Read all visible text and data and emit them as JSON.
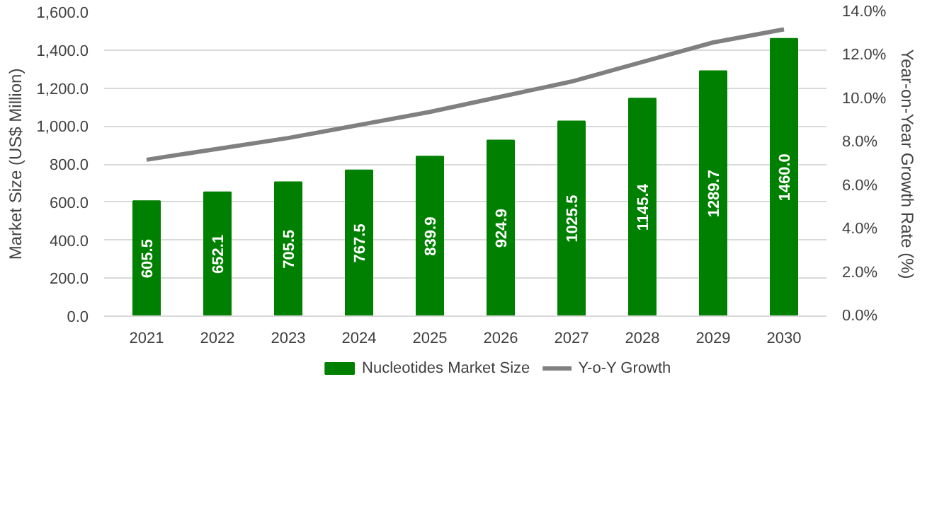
{
  "chart_data": {
    "type": "bar",
    "ylabel": "Market Size (US$ Million)",
    "y2label": "Year-on-Year Growth Rate (%)",
    "categories": [
      "2021",
      "2022",
      "2023",
      "2024",
      "2025",
      "2026",
      "2027",
      "2028",
      "2029",
      "2030"
    ],
    "series": [
      {
        "name": "Nucleotides Market Size",
        "color": "#008000",
        "values": [
          605.5,
          652.1,
          705.5,
          767.5,
          839.9,
          924.9,
          1025.5,
          1145.4,
          1289.7,
          1460.0
        ],
        "value_labels": [
          "605.5",
          "652.1",
          "705.5",
          "767.5",
          "839.9",
          "924.9",
          "1025.5",
          "1145.4",
          "1289.7",
          "1460.0"
        ]
      },
      {
        "name": "Y-o-Y Growth",
        "type": "line",
        "axis": "y2",
        "color": "#808080",
        "values": [
          7.2,
          7.7,
          8.2,
          8.8,
          9.4,
          10.1,
          10.8,
          11.7,
          12.6,
          13.2
        ]
      }
    ],
    "ylim": [
      0,
      1600
    ],
    "yticks": [
      {
        "value": 0,
        "label": "0.0"
      },
      {
        "value": 200,
        "label": "200.0"
      },
      {
        "value": 400,
        "label": "400.0"
      },
      {
        "value": 600,
        "label": "600.0"
      },
      {
        "value": 800,
        "label": "800.0"
      },
      {
        "value": 1000,
        "label": "1,000.0"
      },
      {
        "value": 1200,
        "label": "1,200.0"
      },
      {
        "value": 1400,
        "label": "1,400.0"
      },
      {
        "value": 1600,
        "label": "1,600.0"
      }
    ],
    "y2lim": [
      0,
      14
    ],
    "y2ticks": [
      {
        "value": 0,
        "label": "0.0%"
      },
      {
        "value": 2,
        "label": "2.0%"
      },
      {
        "value": 4,
        "label": "4.0%"
      },
      {
        "value": 6,
        "label": "6.0%"
      },
      {
        "value": 8,
        "label": "8.0%"
      },
      {
        "value": 10,
        "label": "10.0%"
      },
      {
        "value": 12,
        "label": "12.0%"
      },
      {
        "value": 14,
        "label": "14.0%"
      }
    ],
    "grid": "y",
    "legend": "bottom",
    "marker": "none",
    "line_style": "solid"
  }
}
